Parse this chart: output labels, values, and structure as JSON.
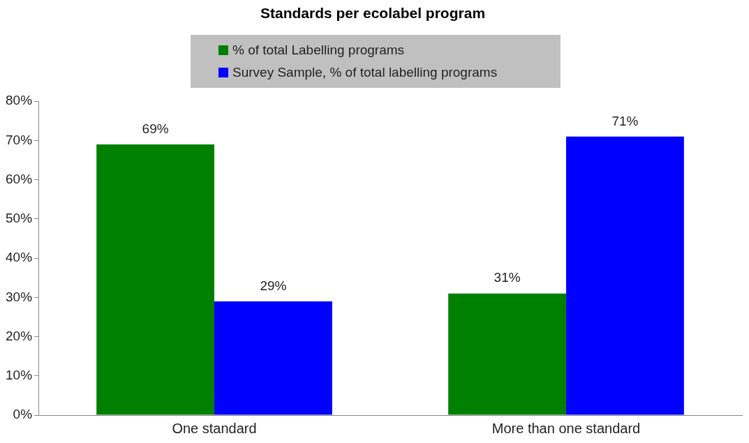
{
  "chart_data": {
    "type": "bar",
    "title": "Standards per ecolabel program",
    "categories": [
      "One standard",
      "More than one standard"
    ],
    "series": [
      {
        "name": "% of total Labelling programs",
        "color": "#008000",
        "values": [
          69,
          31
        ],
        "value_labels": [
          "69%",
          "31%"
        ]
      },
      {
        "name": "Survey Sample, % of total labelling programs",
        "color": "#0000ff",
        "values": [
          29,
          71
        ],
        "value_labels": [
          "29%",
          "71%"
        ]
      }
    ],
    "ylim": [
      0,
      80
    ],
    "yticks": [
      {
        "value": 0,
        "label": "0%"
      },
      {
        "value": 10,
        "label": "10%"
      },
      {
        "value": 20,
        "label": "20%"
      },
      {
        "value": 30,
        "label": "30%"
      },
      {
        "value": 40,
        "label": "40%"
      },
      {
        "value": 50,
        "label": "50%"
      },
      {
        "value": 60,
        "label": "60%"
      },
      {
        "value": 70,
        "label": "70%"
      },
      {
        "value": 80,
        "label": "80%"
      }
    ],
    "grid": false,
    "legend": "top"
  }
}
